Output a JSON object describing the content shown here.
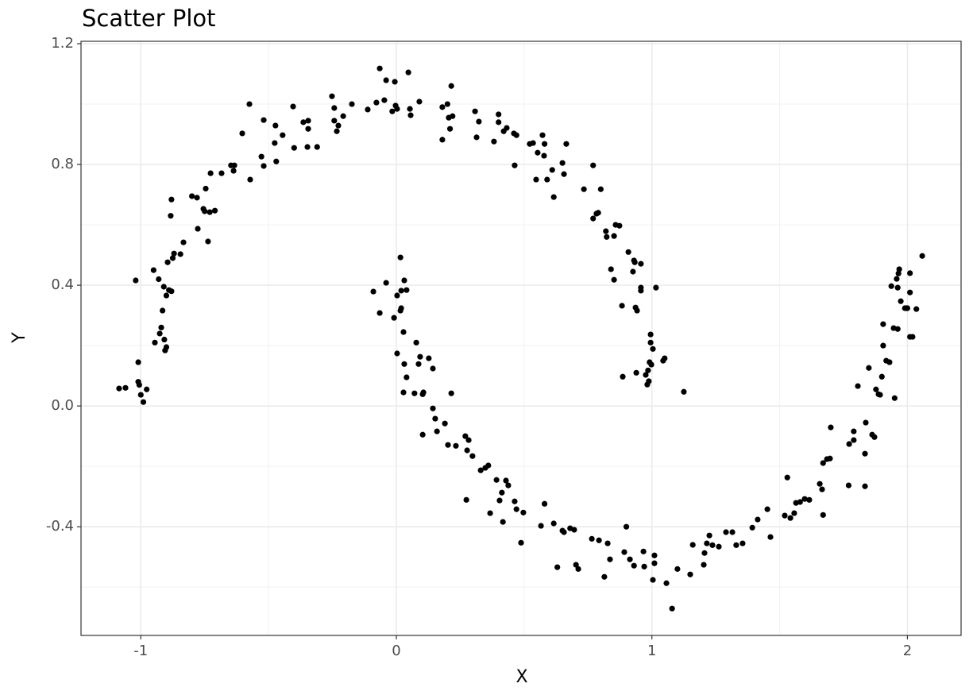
{
  "chart_data": {
    "type": "scatter",
    "title": "Scatter Plot",
    "x_label": "X",
    "y_label": "Y",
    "color": "#000000",
    "grid": true,
    "xlim": [
      -1.234,
      2.21
    ],
    "ylim": [
      -0.76,
      1.208
    ],
    "xticks": [
      -1,
      0,
      1,
      2
    ],
    "yticks": [
      {
        "value": 1.2,
        "label": "1.2"
      },
      {
        "value": 0.8,
        "label": "0.8"
      },
      {
        "value": 0.4,
        "label": "0.4"
      },
      {
        "value": 0,
        "label": "0.0"
      },
      {
        "value": -0.4,
        "label": "-0.4"
      }
    ],
    "x_minor_grid": [
      -0.5,
      0.5,
      1.5
    ],
    "y_minor_grid": [
      1.0,
      0.6,
      0.2,
      -0.2,
      -0.6
    ],
    "x": [
      -1.085,
      -1.06,
      -1.02,
      -1.01,
      -1.01,
      -1.006,
      -1.0,
      -0.99,
      -0.977,
      -0.95,
      -0.945,
      -0.93,
      -0.926,
      -0.92,
      -0.915,
      -0.91,
      -0.908,
      -0.905,
      -0.9,
      -0.9,
      -0.895,
      -0.89,
      -0.883,
      -0.88,
      -0.88,
      -0.875,
      -0.87,
      -0.845,
      -0.833,
      -0.8,
      -0.78,
      -0.777,
      -0.755,
      -0.746,
      -0.75,
      -0.737,
      -0.73,
      -0.727,
      -0.71,
      -0.684,
      -0.647,
      -0.637,
      -0.634,
      -0.603,
      -0.575,
      -0.572,
      -0.528,
      -0.519,
      -0.519,
      -0.476,
      -0.473,
      -0.47,
      -0.445,
      -0.404,
      -0.4,
      -0.364,
      -0.348,
      -0.345,
      -0.345,
      -0.31,
      -0.252,
      -0.243,
      -0.243,
      -0.227,
      -0.233,
      -0.208,
      -0.174,
      -0.112,
      -0.078,
      -0.065,
      -0.04,
      -0.047,
      -0.016,
      -0.006,
      -0.003,
      0.003,
      0.047,
      0.053,
      0.056,
      0.09,
      0.18,
      0.18,
      0.2,
      0.205,
      0.215,
      0.21,
      0.22,
      0.308,
      0.314,
      0.323,
      0.382,
      0.4,
      0.4,
      0.42,
      0.432,
      0.46,
      0.463,
      0.47,
      0.522,
      0.535,
      0.547,
      0.553,
      0.572,
      0.58,
      0.578,
      0.59,
      0.61,
      0.616,
      0.65,
      0.656,
      0.665,
      0.734,
      0.77,
      0.77,
      0.783,
      0.79,
      0.8,
      0.82,
      0.823,
      0.84,
      0.852,
      0.858,
      0.873,
      0.852,
      0.883,
      0.886,
      0.908,
      0.926,
      0.93,
      0.936,
      0.939,
      0.942,
      0.933,
      0.957,
      0.957,
      0.957,
      0.976,
      0.982,
      0.985,
      0.988,
      0.991,
      0.995,
      0.995,
      0.998,
      1.004,
      1.016,
      1.044,
      1.05,
      1.125,
      -0.09,
      -0.065,
      -0.04,
      -0.009,
      0.003,
      0.016,
      0.016,
      0.019,
      0.019,
      0.031,
      0.04,
      0.028,
      0.003,
      0.031,
      0.04,
      0.028,
      0.071,
      0.078,
      0.087,
      0.093,
      0.103,
      0.106,
      0.103,
      0.127,
      0.143,
      0.143,
      0.152,
      0.159,
      0.19,
      0.202,
      0.215,
      0.233,
      0.27,
      0.277,
      0.283,
      0.298,
      0.274,
      0.33,
      0.348,
      0.36,
      0.367,
      0.392,
      0.404,
      0.413,
      0.417,
      0.429,
      0.438,
      0.463,
      0.47,
      0.488,
      0.497,
      0.566,
      0.58,
      0.616,
      0.63,
      0.65,
      0.656,
      0.68,
      0.696,
      0.703,
      0.712,
      0.765,
      0.793,
      0.814,
      0.827,
      0.836,
      0.892,
      0.9,
      0.914,
      0.93,
      0.967,
      0.97,
      1.004,
      1.01,
      1.01,
      1.057,
      1.079,
      1.1,
      1.15,
      1.16,
      1.203,
      1.206,
      1.215,
      1.225,
      1.237,
      1.262,
      1.29,
      1.315,
      1.33,
      1.355,
      1.393,
      1.414,
      1.452,
      1.464,
      1.52,
      1.53,
      1.542,
      1.557,
      1.564,
      1.58,
      1.598,
      1.616,
      1.657,
      1.666,
      1.67,
      1.67,
      1.685,
      1.697,
      1.7,
      1.77,
      1.772,
      1.79,
      1.79,
      1.806,
      1.834,
      1.834,
      1.837,
      1.849,
      1.862,
      1.871,
      1.877,
      1.887,
      1.893,
      1.9,
      1.905,
      1.905,
      1.917,
      1.93,
      1.937,
      1.946,
      1.95,
      1.958,
      1.962,
      1.965,
      1.968,
      1.962,
      1.974,
      1.99,
      1.996,
      2.0,
      2.01,
      2.01,
      2.01,
      2.02,
      2.035,
      2.058
    ],
    "y": [
      0.058,
      0.06,
      0.416,
      0.145,
      0.08,
      0.07,
      0.037,
      0.013,
      0.055,
      0.45,
      0.21,
      0.42,
      0.24,
      0.26,
      0.316,
      0.395,
      0.22,
      0.184,
      0.195,
      0.366,
      0.476,
      0.384,
      0.63,
      0.38,
      0.684,
      0.49,
      0.505,
      0.503,
      0.542,
      0.695,
      0.69,
      0.587,
      0.653,
      0.72,
      0.645,
      0.545,
      0.642,
      0.771,
      0.647,
      0.771,
      0.797,
      0.779,
      0.797,
      0.903,
      1.0,
      0.75,
      0.826,
      0.795,
      0.947,
      0.871,
      0.929,
      0.81,
      0.897,
      0.992,
      0.855,
      0.94,
      0.858,
      0.945,
      0.918,
      0.858,
      1.026,
      0.987,
      0.945,
      0.929,
      0.91,
      0.96,
      1.0,
      0.982,
      1.005,
      1.118,
      1.079,
      1.013,
      0.976,
      1.074,
      0.995,
      0.984,
      1.105,
      0.984,
      0.963,
      1.008,
      0.882,
      0.99,
      1.0,
      0.955,
      1.06,
      0.918,
      0.96,
      0.976,
      0.89,
      0.942,
      0.876,
      0.966,
      0.94,
      0.91,
      0.921,
      0.903,
      0.797,
      0.897,
      0.868,
      0.871,
      0.75,
      0.839,
      0.897,
      0.868,
      0.829,
      0.75,
      0.782,
      0.692,
      0.805,
      0.768,
      0.868,
      0.718,
      0.797,
      0.621,
      0.637,
      0.64,
      0.718,
      0.579,
      0.56,
      0.453,
      0.563,
      0.6,
      0.597,
      0.418,
      0.332,
      0.097,
      0.51,
      0.445,
      0.482,
      0.326,
      0.11,
      0.316,
      0.476,
      0.471,
      0.392,
      0.382,
      0.103,
      0.071,
      0.118,
      0.082,
      0.145,
      0.237,
      0.21,
      0.137,
      0.189,
      0.392,
      0.15,
      0.158,
      0.047,
      0.379,
      0.308,
      0.408,
      0.292,
      0.366,
      0.492,
      0.316,
      0.382,
      0.324,
      0.416,
      0.384,
      0.245,
      0.174,
      0.139,
      0.095,
      0.045,
      0.042,
      0.21,
      0.139,
      0.163,
      0.039,
      0.045,
      -0.095,
      0.158,
      0.124,
      -0.008,
      -0.042,
      -0.084,
      -0.058,
      -0.129,
      0.042,
      -0.132,
      -0.1,
      -0.147,
      -0.113,
      -0.166,
      -0.311,
      -0.213,
      -0.205,
      -0.197,
      -0.355,
      -0.245,
      -0.313,
      -0.287,
      -0.384,
      -0.247,
      -0.263,
      -0.316,
      -0.342,
      -0.453,
      -0.353,
      -0.397,
      -0.324,
      -0.389,
      -0.534,
      -0.413,
      -0.418,
      -0.405,
      -0.41,
      -0.526,
      -0.54,
      -0.44,
      -0.445,
      -0.566,
      -0.455,
      -0.508,
      -0.484,
      -0.4,
      -0.508,
      -0.529,
      -0.482,
      -0.532,
      -0.576,
      -0.495,
      -0.521,
      -0.587,
      -0.671,
      -0.54,
      -0.558,
      -0.46,
      -0.526,
      -0.487,
      -0.455,
      -0.429,
      -0.461,
      -0.466,
      -0.418,
      -0.418,
      -0.461,
      -0.455,
      -0.403,
      -0.376,
      -0.342,
      -0.434,
      -0.363,
      -0.237,
      -0.371,
      -0.355,
      -0.321,
      -0.318,
      -0.308,
      -0.311,
      -0.258,
      -0.276,
      -0.361,
      -0.189,
      -0.176,
      -0.174,
      -0.071,
      -0.263,
      -0.126,
      -0.113,
      -0.084,
      0.066,
      -0.266,
      -0.158,
      -0.055,
      0.126,
      -0.095,
      -0.103,
      0.055,
      0.039,
      0.037,
      0.097,
      0.271,
      0.2,
      0.15,
      0.145,
      0.397,
      0.258,
      0.026,
      0.421,
      0.255,
      0.439,
      0.453,
      0.392,
      0.347,
      0.324,
      0.324,
      0.324,
      0.44,
      0.376,
      0.229,
      0.229,
      0.321,
      0.497
    ]
  }
}
